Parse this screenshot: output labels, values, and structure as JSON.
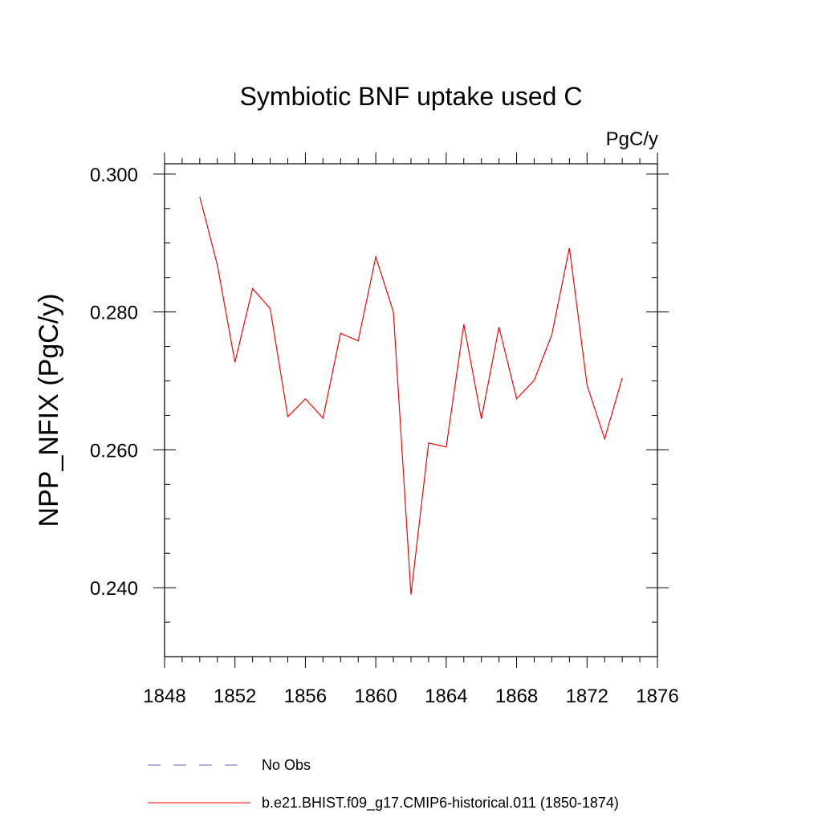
{
  "chart_data": {
    "type": "line",
    "title": "Symbiotic BNF uptake used C",
    "units": "PgC/y",
    "xlabel": "",
    "ylabel": "NPP_NFIX  (PgC/y)",
    "xlim": [
      1848,
      1876
    ],
    "ylim": [
      0.23,
      0.3015
    ],
    "x_ticks": [
      1848,
      1852,
      1856,
      1860,
      1864,
      1868,
      1872,
      1876
    ],
    "x_tick_labels": [
      "1848",
      "1852",
      "1856",
      "1860",
      "1864",
      "1868",
      "1872",
      "1876"
    ],
    "x_minor_step": 1,
    "y_ticks": [
      0.24,
      0.26,
      0.28,
      0.3
    ],
    "y_tick_labels": [
      "0.240",
      "0.260",
      "0.280",
      "0.300"
    ],
    "y_minor_step": 0.005,
    "grid": false,
    "legend_position": "bottom",
    "series": [
      {
        "name": "b.e21.BHIST.f09_g17.CMIP6-historical.011 (1850-1874)",
        "color": "#ff0000",
        "style": "solid",
        "x": [
          1850,
          1851,
          1852,
          1853,
          1854,
          1855,
          1856,
          1857,
          1858,
          1859,
          1860,
          1861,
          1862,
          1863,
          1864,
          1865,
          1866,
          1867,
          1868,
          1869,
          1870,
          1871,
          1872,
          1873,
          1874
        ],
        "values": [
          0.2967,
          0.2868,
          0.2727,
          0.2834,
          0.2805,
          0.2648,
          0.2674,
          0.2646,
          0.2769,
          0.2758,
          0.288,
          0.28,
          0.239,
          0.261,
          0.2604,
          0.2782,
          0.2645,
          0.2778,
          0.2674,
          0.2701,
          0.2767,
          0.2893,
          0.2694,
          0.2616,
          0.2704
        ]
      }
    ],
    "legend": [
      {
        "label": "No Obs",
        "color": "#6a6acd",
        "style": "dashed"
      },
      {
        "label": "b.e21.BHIST.f09_g17.CMIP6-historical.011 (1850-1874)",
        "color": "#ff0000",
        "style": "solid"
      }
    ]
  }
}
